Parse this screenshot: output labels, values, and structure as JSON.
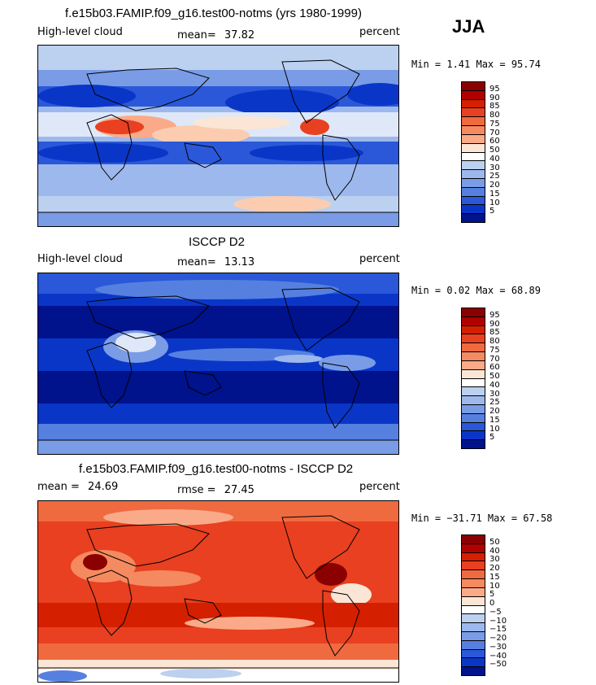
{
  "season": "JJA",
  "colors": {
    "warm": [
      "#8b0000",
      "#b00000",
      "#d42000",
      "#e84020",
      "#f06a40",
      "#f58a60",
      "#faaa88",
      "#fcccb0",
      "#fbe6d6"
    ],
    "neutral": "#ffffff",
    "cool": [
      "#dfe8f8",
      "#bcd0f0",
      "#9db8ec",
      "#7a9ce6",
      "#5680e0",
      "#2a58d8",
      "#0a36c8",
      "#00128c"
    ],
    "land_outline": "#000000"
  },
  "panels": [
    {
      "title": "f.e15b03.FAMIP.f09_g16.test00-notms (yrs 1980-1999)",
      "left_label": "High-level cloud",
      "mean_label": "mean=",
      "mean_value": "37.82",
      "units": "percent",
      "min_max": "Min =   1.41 Max =  95.74",
      "colorbar_ticks": [
        "95",
        "90",
        "85",
        "80",
        "75",
        "70",
        "60",
        "50",
        "40",
        "30",
        "25",
        "20",
        "15",
        "10",
        "5"
      ],
      "scheme": "model"
    },
    {
      "title": "ISCCP D2",
      "left_label": "High-level cloud",
      "mean_label": "mean=",
      "mean_value": "13.13",
      "units": "percent",
      "min_max": "Min =   0.02 Max =  68.89",
      "colorbar_ticks": [
        "95",
        "90",
        "85",
        "80",
        "75",
        "70",
        "60",
        "50",
        "40",
        "30",
        "25",
        "20",
        "15",
        "10",
        "5"
      ],
      "scheme": "obs"
    },
    {
      "title": "f.e15b03.FAMIP.f09_g16.test00-notms - ISCCP D2",
      "left_label": "mean =",
      "mean_label": "rmse =",
      "left_value": "24.69",
      "mean_value": "27.45",
      "units": "percent",
      "min_max": "Min = −31.71 Max =  67.58",
      "colorbar_ticks": [
        "50",
        "40",
        "30",
        "20",
        "15",
        "10",
        "5",
        "0",
        "−5",
        "−10",
        "−15",
        "−20",
        "−30",
        "−40",
        "−50"
      ],
      "scheme": "diff"
    }
  ]
}
